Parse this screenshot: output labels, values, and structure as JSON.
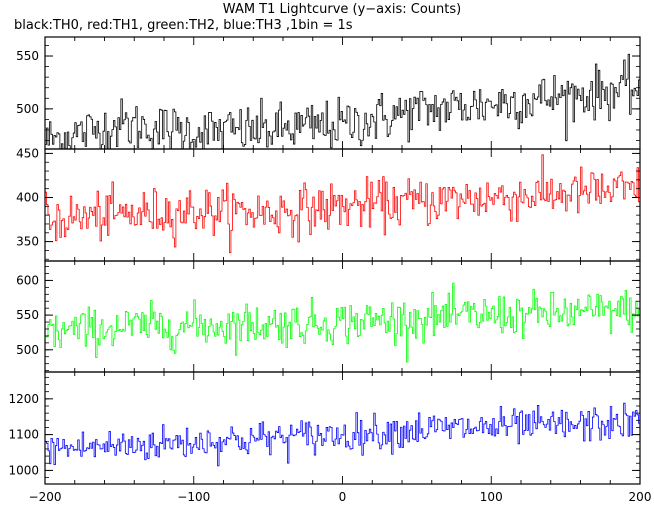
{
  "chart_data": {
    "type": "line",
    "title": "WAM T1 Lightcurve (y−axis: Counts)",
    "subtitle": "black:TH0, red:TH1, green:TH2, blue:TH3 ,1bin = 1s",
    "xlim": [
      -200,
      200
    ],
    "x_ticks": [
      -200,
      -100,
      0,
      100,
      200
    ],
    "x_tick_labels": [
      "−200",
      "−100",
      "0",
      "100",
      "200"
    ],
    "x_step": 1,
    "panels": [
      {
        "name": "TH0",
        "color": "#000000",
        "ylim": [
          462,
          568
        ],
        "y_ticks": [
          500,
          550
        ],
        "y_tick_labels": [
          "450",
          "500",
          "550"
        ],
        "y_tick_values": [
          450,
          500,
          550
        ],
        "trend": [
          [
            -200,
            470
          ],
          [
            -150,
            485
          ],
          [
            -100,
            478
          ],
          [
            -50,
            480
          ],
          [
            0,
            485
          ],
          [
            50,
            498
          ],
          [
            100,
            505
          ],
          [
            150,
            512
          ],
          [
            200,
            520
          ]
        ],
        "noise": 22
      },
      {
        "name": "TH1",
        "color": "#ff0000",
        "ylim": [
          328,
          455
        ],
        "y_tick_labels": [
          "350",
          "400",
          "450"
        ],
        "y_tick_values": [
          350,
          400,
          450
        ],
        "trend": [
          [
            -200,
            375
          ],
          [
            -150,
            380
          ],
          [
            -100,
            385
          ],
          [
            -50,
            383
          ],
          [
            0,
            390
          ],
          [
            50,
            395
          ],
          [
            100,
            400
          ],
          [
            150,
            405
          ],
          [
            200,
            408
          ]
        ],
        "noise": 25
      },
      {
        "name": "TH2",
        "color": "#00ff00",
        "ylim": [
          468,
          628
        ],
        "y_tick_labels": [
          "500",
          "550",
          "600"
        ],
        "y_tick_values": [
          500,
          550,
          600
        ],
        "trend": [
          [
            -200,
            525
          ],
          [
            -150,
            532
          ],
          [
            -100,
            535
          ],
          [
            -50,
            537
          ],
          [
            0,
            540
          ],
          [
            50,
            545
          ],
          [
            100,
            550
          ],
          [
            150,
            552
          ],
          [
            200,
            558
          ]
        ],
        "noise": 28
      },
      {
        "name": "TH3",
        "color": "#0000ff",
        "ylim": [
          962,
          1275
        ],
        "y_tick_labels": [
          "1000",
          "1100",
          "1200"
        ],
        "y_tick_values": [
          1000,
          1100,
          1200
        ],
        "trend": [
          [
            -200,
            1060
          ],
          [
            -150,
            1068
          ],
          [
            -100,
            1080
          ],
          [
            -50,
            1090
          ],
          [
            0,
            1100
          ],
          [
            50,
            1115
          ],
          [
            100,
            1120
          ],
          [
            150,
            1125
          ],
          [
            200,
            1135
          ]
        ],
        "noise": 45
      }
    ]
  }
}
